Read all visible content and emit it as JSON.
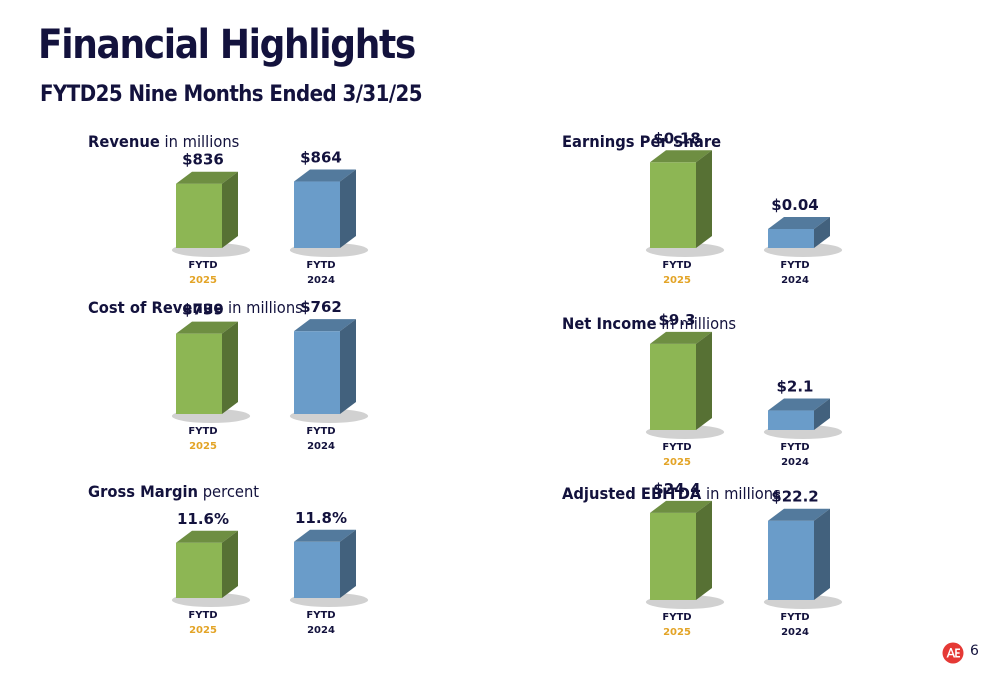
{
  "header": {
    "title": "Financial Highlights",
    "subtitle": "FYTD25 Nine Months Ended 3/31/25"
  },
  "colors": {
    "bar_2025": "#8db654",
    "bar_2024": "#6a9cc9",
    "year_2025_text": "#e3a427",
    "year_2024_text": "#13123d",
    "text": "#13123d",
    "logo": "#e53935"
  },
  "footer": {
    "page_number": "6",
    "logo_icon": "ae-logo-icon"
  },
  "chart_data": [
    {
      "id": "revenue",
      "type": "bar",
      "title": "Revenue",
      "title_suffix": "in millions",
      "categories": [
        "FYTD|2025",
        "FYTD|2024"
      ],
      "category_line1": [
        "FYTD",
        "FYTD"
      ],
      "category_line2": [
        "2025",
        "2024"
      ],
      "values": [
        836,
        864
      ],
      "value_labels": [
        "$836",
        "$864"
      ],
      "ylim": [
        0,
        1300
      ]
    },
    {
      "id": "cost-of-revenue",
      "type": "bar",
      "title": "Cost of Revenue",
      "title_suffix": "in millions",
      "categories": [
        "FYTD|2025",
        "FYTD|2024"
      ],
      "category_line1": [
        "FYTD",
        "FYTD"
      ],
      "category_line2": [
        "2025",
        "2024"
      ],
      "values": [
        739,
        762
      ],
      "value_labels": [
        "$739",
        "$762"
      ],
      "ylim": [
        0,
        920
      ]
    },
    {
      "id": "gross-margin",
      "type": "bar",
      "title": "Gross Margin",
      "title_suffix": "percent",
      "categories": [
        "FYTD|2025",
        "FYTD|2024"
      ],
      "category_line1": [
        "FYTD",
        "FYTD"
      ],
      "category_line2": [
        "2025",
        "2024"
      ],
      "values": [
        11.6,
        11.8
      ],
      "value_labels": [
        "11.6%",
        "11.8%"
      ],
      "ylim": [
        0,
        21
      ]
    },
    {
      "id": "eps",
      "type": "bar",
      "title": "Earnings Per Share",
      "title_suffix": "",
      "categories": [
        "FYTD|2025",
        "FYTD|2024"
      ],
      "category_line1": [
        "FYTD",
        "FYTD"
      ],
      "category_line2": [
        "2025",
        "2024"
      ],
      "values": [
        0.18,
        0.04
      ],
      "value_labels": [
        "$0.18",
        "$0.04"
      ],
      "ylim": [
        0,
        0.21
      ]
    },
    {
      "id": "net-income",
      "type": "bar",
      "title": "Net Income",
      "title_suffix": "in millions",
      "categories": [
        "FYTD|2025",
        "FYTD|2024"
      ],
      "category_line1": [
        "FYTD",
        "FYTD"
      ],
      "category_line2": [
        "2025",
        "2024"
      ],
      "values": [
        9.3,
        2.1
      ],
      "value_labels": [
        "$9.3",
        "$2.1"
      ],
      "ylim": [
        0,
        10.8
      ]
    },
    {
      "id": "adjusted-ebitda",
      "type": "bar",
      "title": "Adjusted EBITDA",
      "title_suffix": "in millions",
      "categories": [
        "FYTD|2025",
        "FYTD|2024"
      ],
      "category_line1": [
        "FYTD",
        "FYTD"
      ],
      "category_line2": [
        "2025",
        "2024"
      ],
      "values": [
        24.4,
        22.2
      ],
      "value_labels": [
        "$24.4",
        "$22.2"
      ],
      "ylim": [
        0,
        28
      ]
    }
  ]
}
